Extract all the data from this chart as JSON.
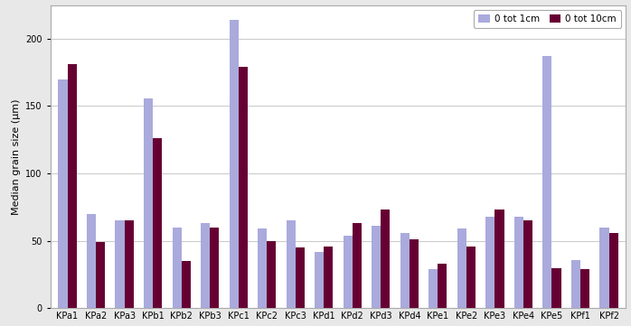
{
  "categories": [
    "KPa1",
    "KPa2",
    "KPa3",
    "KPb1",
    "KPb2",
    "KPb3",
    "KPc1",
    "KPc2",
    "KPc3",
    "KPd1",
    "KPd2",
    "KPd3",
    "KPd4",
    "KPe1",
    "KPe2",
    "KPe3",
    "KPe4",
    "KPe5",
    "KPf1",
    "KPf2"
  ],
  "series1_label": "0 tot 1cm",
  "series2_label": "0 tot 10cm",
  "series1_values": [
    170,
    70,
    65,
    156,
    60,
    63,
    214,
    59,
    65,
    42,
    54,
    61,
    56,
    29,
    59,
    68,
    68,
    187,
    36,
    60
  ],
  "series2_values": [
    181,
    49,
    65,
    126,
    35,
    60,
    179,
    50,
    45,
    46,
    63,
    73,
    51,
    33,
    46,
    73,
    65,
    30,
    29,
    56
  ],
  "series1_color": "#aaaadd",
  "series2_color": "#660033",
  "ylabel": "Median grain size (µm)",
  "ylim": [
    0,
    225
  ],
  "yticks": [
    0,
    50,
    100,
    150,
    200
  ],
  "bar_width": 0.32,
  "figure_bg_color": "#e8e8e8",
  "axes_bg_color": "#ffffff",
  "grid_color": "#cccccc",
  "border_color": "#aaaaaa",
  "legend_loc": "upper right",
  "tick_fontsize": 7,
  "ylabel_fontsize": 8
}
